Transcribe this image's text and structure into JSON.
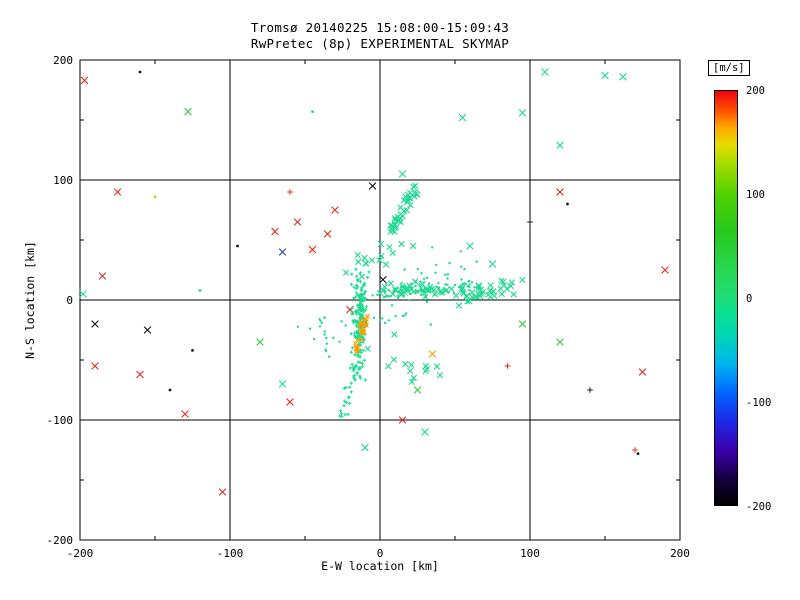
{
  "chart_data": {
    "type": "scatter",
    "title": "Tromsø 20140225 15:08:00-15:09:43",
    "subtitle": "RwPretec (8p) EXPERIMENTAL SKYMAP",
    "xlabel": "E-W location [km]",
    "ylabel": "N-S location [km]",
    "xlim": [
      -200,
      200
    ],
    "ylim": [
      -200,
      200
    ],
    "xticks": [
      -200,
      -100,
      0,
      100,
      200
    ],
    "yticks": [
      -200,
      -100,
      0,
      100,
      200
    ],
    "grid": true,
    "legend_position": "none",
    "colorbar": {
      "label": "[m/s]",
      "min": -200,
      "max": 200,
      "ticks": [
        "200",
        "100",
        "0",
        "-100",
        "-200"
      ]
    },
    "palette": {
      "cyan": "#1ed98f",
      "green": "#2fcf3a",
      "red": "#e42b1e",
      "orange": "#ff9d00",
      "black": "#161616",
      "blue": "#2a3fd4",
      "yellow": "#c8c81e"
    },
    "points": [
      [
        -197,
        183,
        "red",
        "x"
      ],
      [
        -175,
        90,
        "red",
        "x"
      ],
      [
        -185,
        20,
        "red",
        "x"
      ],
      [
        -190,
        -55,
        "red",
        "x"
      ],
      [
        -160,
        -62,
        "red",
        "x"
      ],
      [
        -130,
        -95,
        "red",
        "x"
      ],
      [
        -105,
        -160,
        "red",
        "x"
      ],
      [
        -70,
        57,
        "red",
        "x"
      ],
      [
        -55,
        65,
        "red",
        "x"
      ],
      [
        -30,
        75,
        "red",
        "x"
      ],
      [
        -35,
        55,
        "red",
        "x"
      ],
      [
        -45,
        42,
        "red",
        "x"
      ],
      [
        -60,
        -85,
        "red",
        "x"
      ],
      [
        15,
        -100,
        "red",
        "x"
      ],
      [
        120,
        90,
        "red",
        "x"
      ],
      [
        190,
        25,
        "red",
        "x"
      ],
      [
        175,
        -60,
        "red",
        "x"
      ],
      [
        -20,
        -8,
        "red",
        "x"
      ],
      [
        -60,
        90,
        "red",
        "p"
      ],
      [
        85,
        -55,
        "red",
        "p"
      ],
      [
        170,
        -125,
        "red",
        "p"
      ],
      [
        35,
        -45,
        "orange",
        "x"
      ],
      [
        -160,
        190,
        "black",
        "d"
      ],
      [
        -95,
        45,
        "black",
        "d"
      ],
      [
        -190,
        -20,
        "black",
        "x"
      ],
      [
        -155,
        -25,
        "black",
        "x"
      ],
      [
        -140,
        -75,
        "black",
        "d"
      ],
      [
        125,
        80,
        "black",
        "d"
      ],
      [
        100,
        65,
        "black",
        "p"
      ],
      [
        140,
        -75,
        "black",
        "p"
      ],
      [
        -5,
        95,
        "black",
        "x"
      ],
      [
        172,
        -128,
        "black",
        "d"
      ],
      [
        2,
        17,
        "black",
        "x"
      ],
      [
        -125,
        -42,
        "black",
        "d"
      ],
      [
        -65,
        40,
        "blue",
        "x"
      ],
      [
        -150,
        86,
        "yellow",
        "d"
      ],
      [
        -128,
        157,
        "green",
        "x"
      ],
      [
        120,
        -35,
        "green",
        "x"
      ],
      [
        25,
        -75,
        "green",
        "x"
      ],
      [
        95,
        -20,
        "green",
        "x"
      ],
      [
        -80,
        -35,
        "green",
        "x"
      ],
      [
        55,
        152,
        "cyan",
        "x"
      ],
      [
        95,
        156,
        "cyan",
        "x"
      ],
      [
        110,
        190,
        "cyan",
        "x"
      ],
      [
        150,
        187,
        "cyan",
        "x"
      ],
      [
        162,
        186,
        "cyan",
        "x"
      ],
      [
        120,
        129,
        "cyan",
        "x"
      ],
      [
        15,
        105,
        "cyan",
        "x"
      ],
      [
        -198,
        5,
        "cyan",
        "x"
      ],
      [
        -65,
        -70,
        "cyan",
        "x"
      ],
      [
        30,
        -110,
        "cyan",
        "x"
      ],
      [
        -10,
        -123,
        "cyan",
        "x"
      ],
      [
        -45,
        157,
        "cyan",
        "d"
      ],
      [
        60,
        45,
        "cyan",
        "x"
      ],
      [
        75,
        30,
        "cyan",
        "x"
      ],
      [
        -120,
        8,
        "cyan",
        "d"
      ]
    ],
    "clusters": [
      {
        "n": 120,
        "x0": -13,
        "y0": 30,
        "x1": -15,
        "y1": -65,
        "spread": 6,
        "color": "cyan",
        "marker": "p",
        "size": 1.7,
        "seed": 11
      },
      {
        "n": 60,
        "x0": -12,
        "y0": 5,
        "x1": -13,
        "y1": -35,
        "spread": 3.5,
        "color": "cyan",
        "marker": "p",
        "size": 1.7,
        "seed": 23
      },
      {
        "n": 18,
        "x0": -17,
        "y0": -65,
        "x1": -27,
        "y1": -97,
        "spread": 5,
        "color": "cyan",
        "marker": "p",
        "size": 1.7,
        "seed": 31
      },
      {
        "n": 24,
        "x0": -9,
        "y0": -13,
        "x1": -17,
        "y1": -44,
        "spread": 2.2,
        "color": "orange",
        "marker": "x",
        "size": 2.2,
        "seed": 41
      },
      {
        "n": 55,
        "x0": 0,
        "y0": 10,
        "x1": 80,
        "y1": 6,
        "spread": 7,
        "color": "cyan",
        "marker": "x",
        "size": 2.8,
        "seed": 53
      },
      {
        "n": 70,
        "x0": -5,
        "y0": 4,
        "x1": 65,
        "y1": 12,
        "spread": 6,
        "color": "cyan",
        "marker": "d",
        "size": 1.2,
        "seed": 61
      },
      {
        "n": 38,
        "x0": 8,
        "y0": 58,
        "x1": 25,
        "y1": 96,
        "spread": 4.5,
        "color": "cyan",
        "marker": "x",
        "size": 2.8,
        "seed": 71
      },
      {
        "n": 55,
        "x0": -35,
        "y0": -25,
        "x1": 60,
        "y1": 30,
        "spread": 30,
        "color": "cyan",
        "marker": "d",
        "size": 1.2,
        "seed": 83
      },
      {
        "n": 22,
        "x0": 55,
        "y0": 2,
        "x1": 92,
        "y1": 12,
        "spread": 8,
        "color": "cyan",
        "marker": "x",
        "size": 2.8,
        "seed": 97
      },
      {
        "n": 16,
        "x0": -20,
        "y0": 25,
        "x1": 15,
        "y1": 50,
        "spread": 12,
        "color": "cyan",
        "marker": "x",
        "size": 2.8,
        "seed": 101
      },
      {
        "n": 14,
        "x0": -5,
        "y0": -40,
        "x1": 35,
        "y1": -70,
        "spread": 14,
        "color": "cyan",
        "marker": "x",
        "size": 2.8,
        "seed": 103
      },
      {
        "n": 12,
        "x0": -45,
        "y0": -10,
        "x1": -25,
        "y1": -55,
        "spread": 10,
        "color": "cyan",
        "marker": "d",
        "size": 1.2,
        "seed": 107
      }
    ]
  }
}
